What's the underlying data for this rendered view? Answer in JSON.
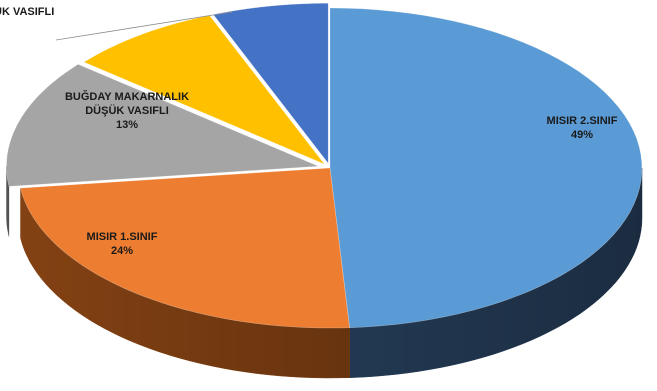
{
  "chart_data": {
    "type": "pie",
    "style": "3d-exploded-perspective",
    "slices": [
      {
        "label": "MISIR 2.SINIF",
        "value": 49,
        "value_label": "49%",
        "color": "#5B9BD5",
        "side_color": "#243B56"
      },
      {
        "label": "MISIR 1.SINIF",
        "value": 24,
        "value_label": "24%",
        "color": "#ED7D31",
        "side_color": "#8A4514"
      },
      {
        "label": "BUĞDAY MAKARNALIK DÜŞÜK VASIFLI",
        "value": 13,
        "value_label": "13%",
        "color": "#A5A5A5",
        "side_color": "#5E5E5E"
      },
      {
        "label": "ÜK VASIFLI",
        "value": 8,
        "value_label": "",
        "color": "#FFC000",
        "side_color": "#9A7400"
      },
      {
        "label": "",
        "value": 6,
        "value_label": "",
        "color": "#4472C4",
        "side_color": "#243F73"
      }
    ],
    "labels_display": {
      "MISIR 2.SINIF": [
        "MISIR 2.SINIF",
        "49%"
      ],
      "MISIR 1.SINIF": [
        "MISIR 1.SINIF",
        "24%"
      ],
      "BUĞDAY MAKARNALIK DÜŞÜK VASIFLI": [
        "BUĞDAY MAKARNALIK",
        "DÜŞÜK VASIFLI",
        "13%"
      ],
      "ÜK VASIFLI": [
        "ÜK VASIFLI"
      ]
    }
  }
}
